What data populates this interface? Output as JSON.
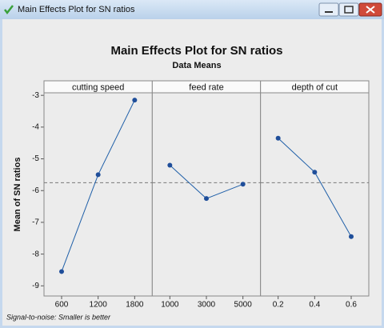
{
  "window": {
    "title": "Main Effects Plot for SN ratios"
  },
  "chart_data": {
    "type": "line",
    "title": "Main Effects Plot for SN ratios",
    "subtitle": "Data Means",
    "y_label": "Mean of SN ratios",
    "footnote": "Signal-to-noise: Smaller is better",
    "color": "#1f5fa8",
    "reference_line": -5.75,
    "ylim": [
      -9.32,
      -2.92
    ],
    "yticks": [
      -9,
      -8,
      -7,
      -6,
      -5,
      -4,
      -3
    ],
    "panels": [
      {
        "name": "cutting speed",
        "categories": [
          600,
          1200,
          1800
        ],
        "values": [
          -8.55,
          -5.5,
          -3.15
        ]
      },
      {
        "name": "feed rate",
        "categories": [
          1000,
          3000,
          5000
        ],
        "values": [
          -5.2,
          -6.25,
          -5.8
        ]
      },
      {
        "name": "depth of cut",
        "categories": [
          0.2,
          0.4,
          0.6
        ],
        "values": [
          -4.35,
          -5.42,
          -7.45
        ]
      }
    ]
  }
}
